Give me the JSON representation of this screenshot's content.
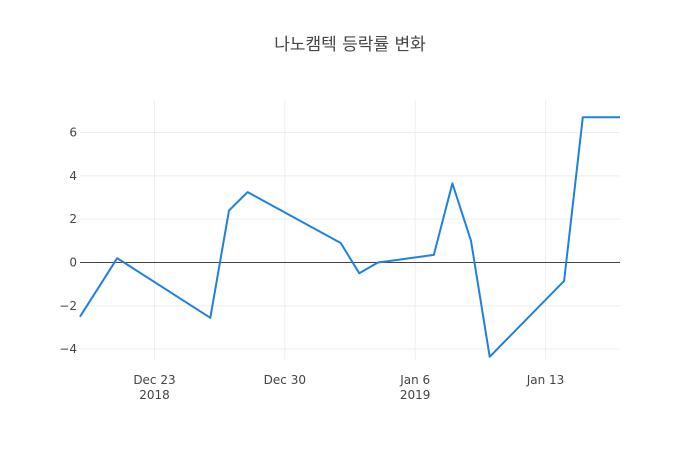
{
  "chart_data": {
    "type": "line",
    "title": "나노캠텍 등락률 변화",
    "xlabel": "",
    "ylabel": "",
    "x": [
      "2018-12-19",
      "2018-12-21",
      "2018-12-26",
      "2018-12-27",
      "2018-12-28",
      "2019-01-02",
      "2019-01-03",
      "2019-01-04",
      "2019-01-07",
      "2019-01-08",
      "2019-01-09",
      "2019-01-10",
      "2019-01-14",
      "2019-01-15",
      "2019-01-17"
    ],
    "series": [
      {
        "values": [
          -2.5,
          0.2,
          -2.55,
          2.4,
          3.25,
          0.9,
          -0.5,
          0.0,
          0.35,
          3.65,
          1.0,
          -4.35,
          -0.85,
          6.7,
          6.7
        ]
      }
    ],
    "xlim": [
      "2018-12-19",
      "2019-01-17"
    ],
    "ylim": [
      -4.5,
      7.5
    ],
    "x_ticks": [
      {
        "date": "2018-12-23",
        "label": "Dec 23",
        "sublabel": "2018"
      },
      {
        "date": "2018-12-30",
        "label": "Dec 30",
        "sublabel": ""
      },
      {
        "date": "2019-01-06",
        "label": "Jan 6",
        "sublabel": "2019"
      },
      {
        "date": "2019-01-13",
        "label": "Jan 13",
        "sublabel": ""
      }
    ],
    "y_ticks": [
      -4,
      -2,
      0,
      2,
      4,
      6
    ],
    "y_tick_labels": [
      "−4",
      "−2",
      "0",
      "2",
      "4",
      "6"
    ],
    "grid": true,
    "line_color": "#1f80e0"
  }
}
